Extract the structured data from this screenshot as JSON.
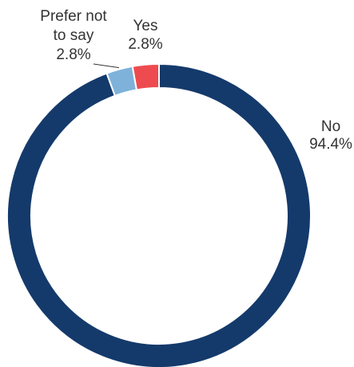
{
  "chart_data": {
    "type": "pie",
    "variant": "donut",
    "start_angle_deg": 0,
    "direction": "clockwise",
    "slices": [
      {
        "label": "No",
        "value": 94.4,
        "value_label": "94.4%",
        "color": "#143A6B"
      },
      {
        "label": "Prefer not to say",
        "label_lines": [
          "Prefer not",
          "to say"
        ],
        "value": 2.8,
        "value_label": "2.8%",
        "color": "#7FB2DA"
      },
      {
        "label": "Yes",
        "value": 2.8,
        "value_label": "2.8%",
        "color": "#EE4B50"
      }
    ],
    "legend": "none"
  }
}
